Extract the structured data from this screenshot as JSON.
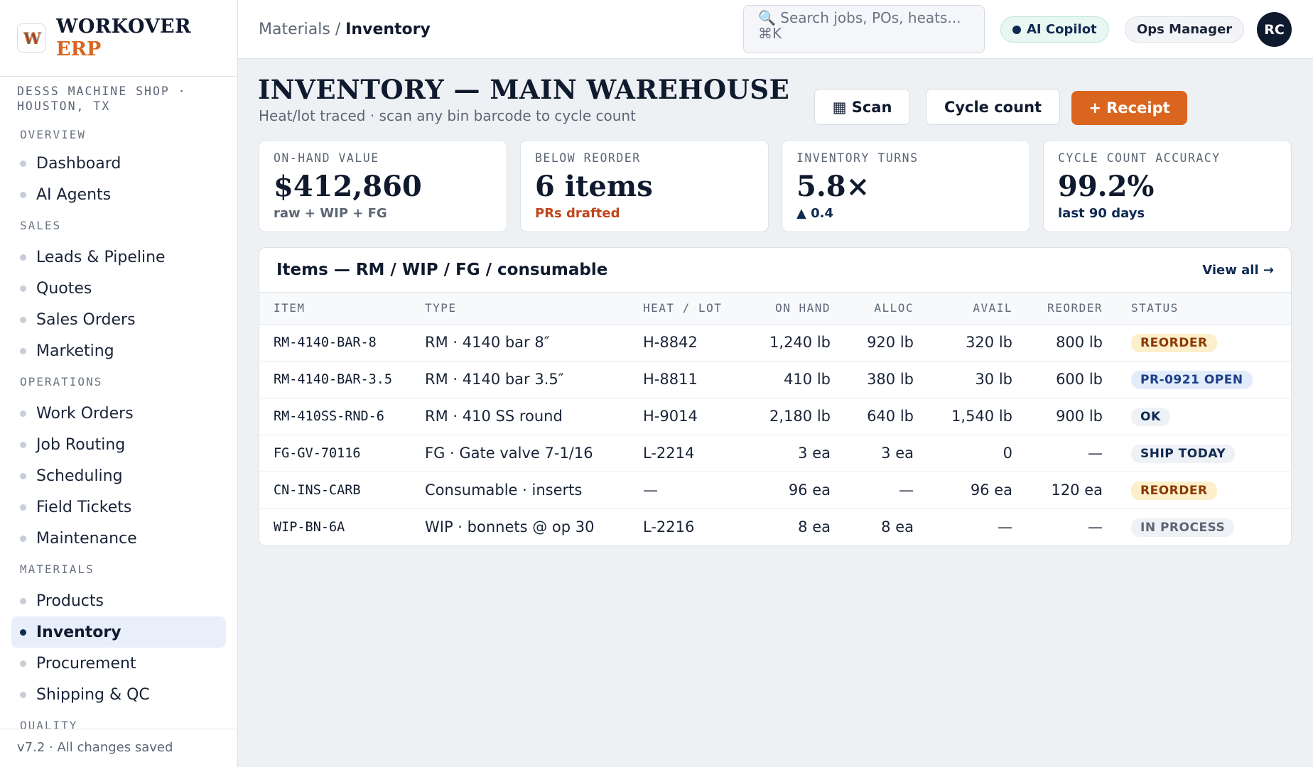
{
  "brand": {
    "name": "WORKOVER",
    "sub": "ERP",
    "logo_letter": "W"
  },
  "org": {
    "line1": "DESSS MACHINE SHOP ·",
    "line2": "HOUSTON, TX"
  },
  "nav": {
    "sections": [
      {
        "title": "OVERVIEW",
        "items": [
          "Dashboard",
          "AI Agents"
        ]
      },
      {
        "title": "SALES",
        "items": [
          "Leads & Pipeline",
          "Quotes",
          "Sales Orders",
          "Marketing"
        ]
      },
      {
        "title": "OPERATIONS",
        "items": [
          "Work Orders",
          "Job Routing",
          "Scheduling",
          "Field Tickets",
          "Maintenance"
        ]
      },
      {
        "title": "MATERIALS",
        "items": [
          "Products",
          "Inventory",
          "Procurement",
          "Shipping & QC"
        ]
      },
      {
        "title": "QUALITY",
        "items": []
      }
    ],
    "active": "Inventory"
  },
  "footer": {
    "text": "v7.2 · All changes saved"
  },
  "header": {
    "breadcrumb_parent": "Materials /",
    "breadcrumb_current": "Inventory",
    "search_placeholder": "🔍 Search jobs, POs, heats... ⌘K",
    "copilot_label": "AI Copilot",
    "role_label": "Ops Manager",
    "avatar_initials": "RC"
  },
  "page": {
    "title": "INVENTORY — MAIN WAREHOUSE",
    "subtitle": "Heat/lot traced · scan any bin barcode to cycle count",
    "scan_label": "▦ Scan",
    "cycle_label": "Cycle count",
    "receipt_label": "+ Receipt"
  },
  "kpis": [
    {
      "label": "ON-HAND VALUE",
      "value": "$412,860",
      "note": "raw + WIP + FG",
      "tone": "muted"
    },
    {
      "label": "BELOW REORDER",
      "value": "6 items",
      "note": "PRs drafted",
      "tone": "warn"
    },
    {
      "label": "INVENTORY TURNS",
      "value": "5.8×",
      "note": "▲ 0.4",
      "tone": "up"
    },
    {
      "label": "CYCLE COUNT ACCURACY",
      "value": "99.2%",
      "note": "last 90 days",
      "tone": "up"
    }
  ],
  "table": {
    "title": "Items — RM / WIP / FG / consumable",
    "view_all": "View all →",
    "headers": [
      "ITEM",
      "TYPE",
      "HEAT / LOT",
      "ON HAND",
      "ALLOC",
      "AVAIL",
      "REORDER",
      "STATUS"
    ],
    "rows": [
      {
        "item": "RM-4140-BAR-8",
        "type": "RM · 4140 bar 8″",
        "heat": "H-8842",
        "on_hand": "1,240 lb",
        "alloc": "920 lb",
        "avail": "320 lb",
        "reorder": "800 lb",
        "status": "REORDER",
        "status_tone": "warn"
      },
      {
        "item": "RM-4140-BAR-3.5",
        "type": "RM · 4140 bar 3.5″",
        "heat": "H-8811",
        "on_hand": "410 lb",
        "alloc": "380 lb",
        "avail": "30 lb",
        "reorder": "600 lb",
        "status": "PR-0921 OPEN",
        "status_tone": "info"
      },
      {
        "item": "RM-410SS-RND-6",
        "type": "RM · 410 SS round",
        "heat": "H-9014",
        "on_hand": "2,180 lb",
        "alloc": "640 lb",
        "avail": "1,540 lb",
        "reorder": "900 lb",
        "status": "OK",
        "status_tone": "ok"
      },
      {
        "item": "FG-GV-70116",
        "type": "FG · Gate valve 7-1/16",
        "heat": "L-2214",
        "on_hand": "3 ea",
        "alloc": "3 ea",
        "avail": "0",
        "reorder": "—",
        "status": "SHIP TODAY",
        "status_tone": "ship"
      },
      {
        "item": "CN-INS-CARB",
        "type": "Consumable · inserts",
        "heat": "—",
        "on_hand": "96 ea",
        "alloc": "—",
        "avail": "96 ea",
        "reorder": "120 ea",
        "status": "REORDER",
        "status_tone": "warn"
      },
      {
        "item": "WIP-BN-6A",
        "type": "WIP · bonnets @ op 30",
        "heat": "L-2216",
        "on_hand": "8 ea",
        "alloc": "8 ea",
        "avail": "—",
        "reorder": "—",
        "status": "IN PROCESS",
        "status_tone": "proc"
      }
    ]
  },
  "colors": {
    "accent": "#d9651f",
    "navy": "#0f1a2e",
    "active_bg": "#e9effa"
  }
}
